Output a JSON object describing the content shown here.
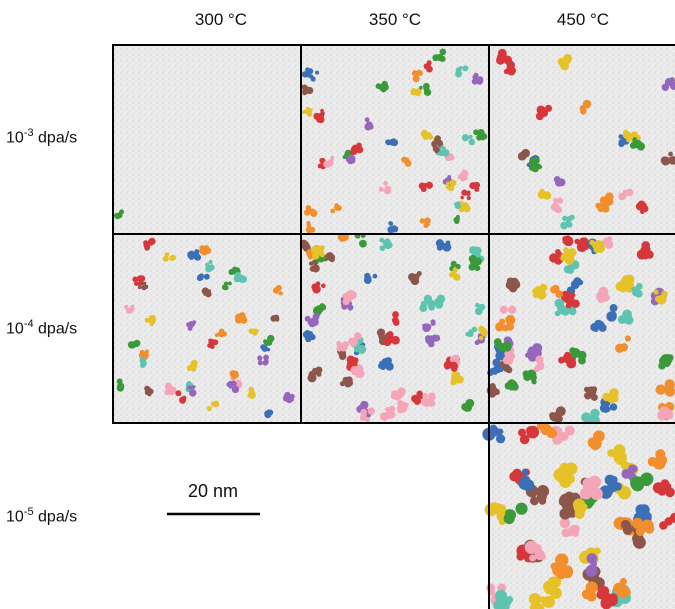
{
  "columns": [
    "300 °C",
    "350 °C",
    "450 °C"
  ],
  "rows": [
    {
      "base": "10",
      "exponent": "-3",
      "unit": " dpa/s"
    },
    {
      "base": "10",
      "exponent": "-4",
      "unit": " dpa/s"
    },
    {
      "base": "10",
      "exponent": "-5",
      "unit": " dpa/s"
    }
  ],
  "scale_bar": "20 nm"
}
